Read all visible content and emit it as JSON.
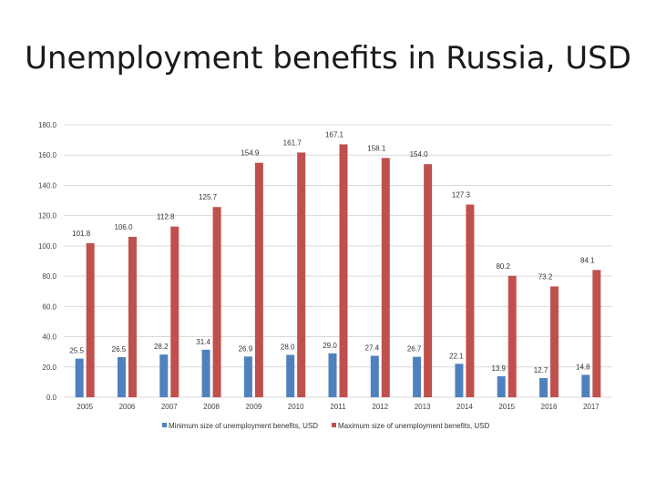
{
  "slide": {
    "title": "Unemployment benefits in Russia, USD"
  },
  "chart_data": {
    "type": "bar",
    "title": "Unemployment benefits in Russia, USD",
    "categories": [
      "2005",
      "2006",
      "2007",
      "2008",
      "2009",
      "2010",
      "2011",
      "2012",
      "2013",
      "2014",
      "2015",
      "2016",
      "2017"
    ],
    "series": [
      {
        "name": "Minimum size of unemployment benefits, USD",
        "color": "#4f81bd",
        "values": [
          25.5,
          26.5,
          28.2,
          31.4,
          26.9,
          28.0,
          29.0,
          27.4,
          26.7,
          22.1,
          13.9,
          12.7,
          14.8
        ],
        "labels": [
          "25.5",
          "26.5",
          "28.2",
          "31.4",
          "26.9",
          "28.0",
          "29.0",
          "27.4",
          "26.7",
          "22.1",
          "13.9",
          "12.7",
          "14.8"
        ]
      },
      {
        "name": "Maximum size of unemployment benefits, USD",
        "color": "#c0504d",
        "values": [
          101.8,
          106.0,
          112.8,
          125.7,
          154.9,
          161.7,
          167.1,
          158.1,
          154.0,
          127.3,
          80.2,
          73.2,
          84.1
        ],
        "labels": [
          "101.8",
          "106.0",
          "112.8",
          "125.7",
          "154.9",
          "161.7",
          "167.1",
          "158.1",
          "154.0",
          "127.3",
          "80.2",
          "73.2",
          "84.1"
        ]
      }
    ],
    "ylim": [
      0,
      180
    ],
    "yticks": [
      "0.0",
      "20.0",
      "40.0",
      "60.0",
      "80.0",
      "100.0",
      "120.0",
      "140.0",
      "160.0",
      "180.0"
    ],
    "ytick_values": [
      0,
      20,
      40,
      60,
      80,
      100,
      120,
      140,
      160,
      180
    ],
    "grid": true,
    "grid_color": "#d9d9d9",
    "legend_position": "bottom"
  }
}
